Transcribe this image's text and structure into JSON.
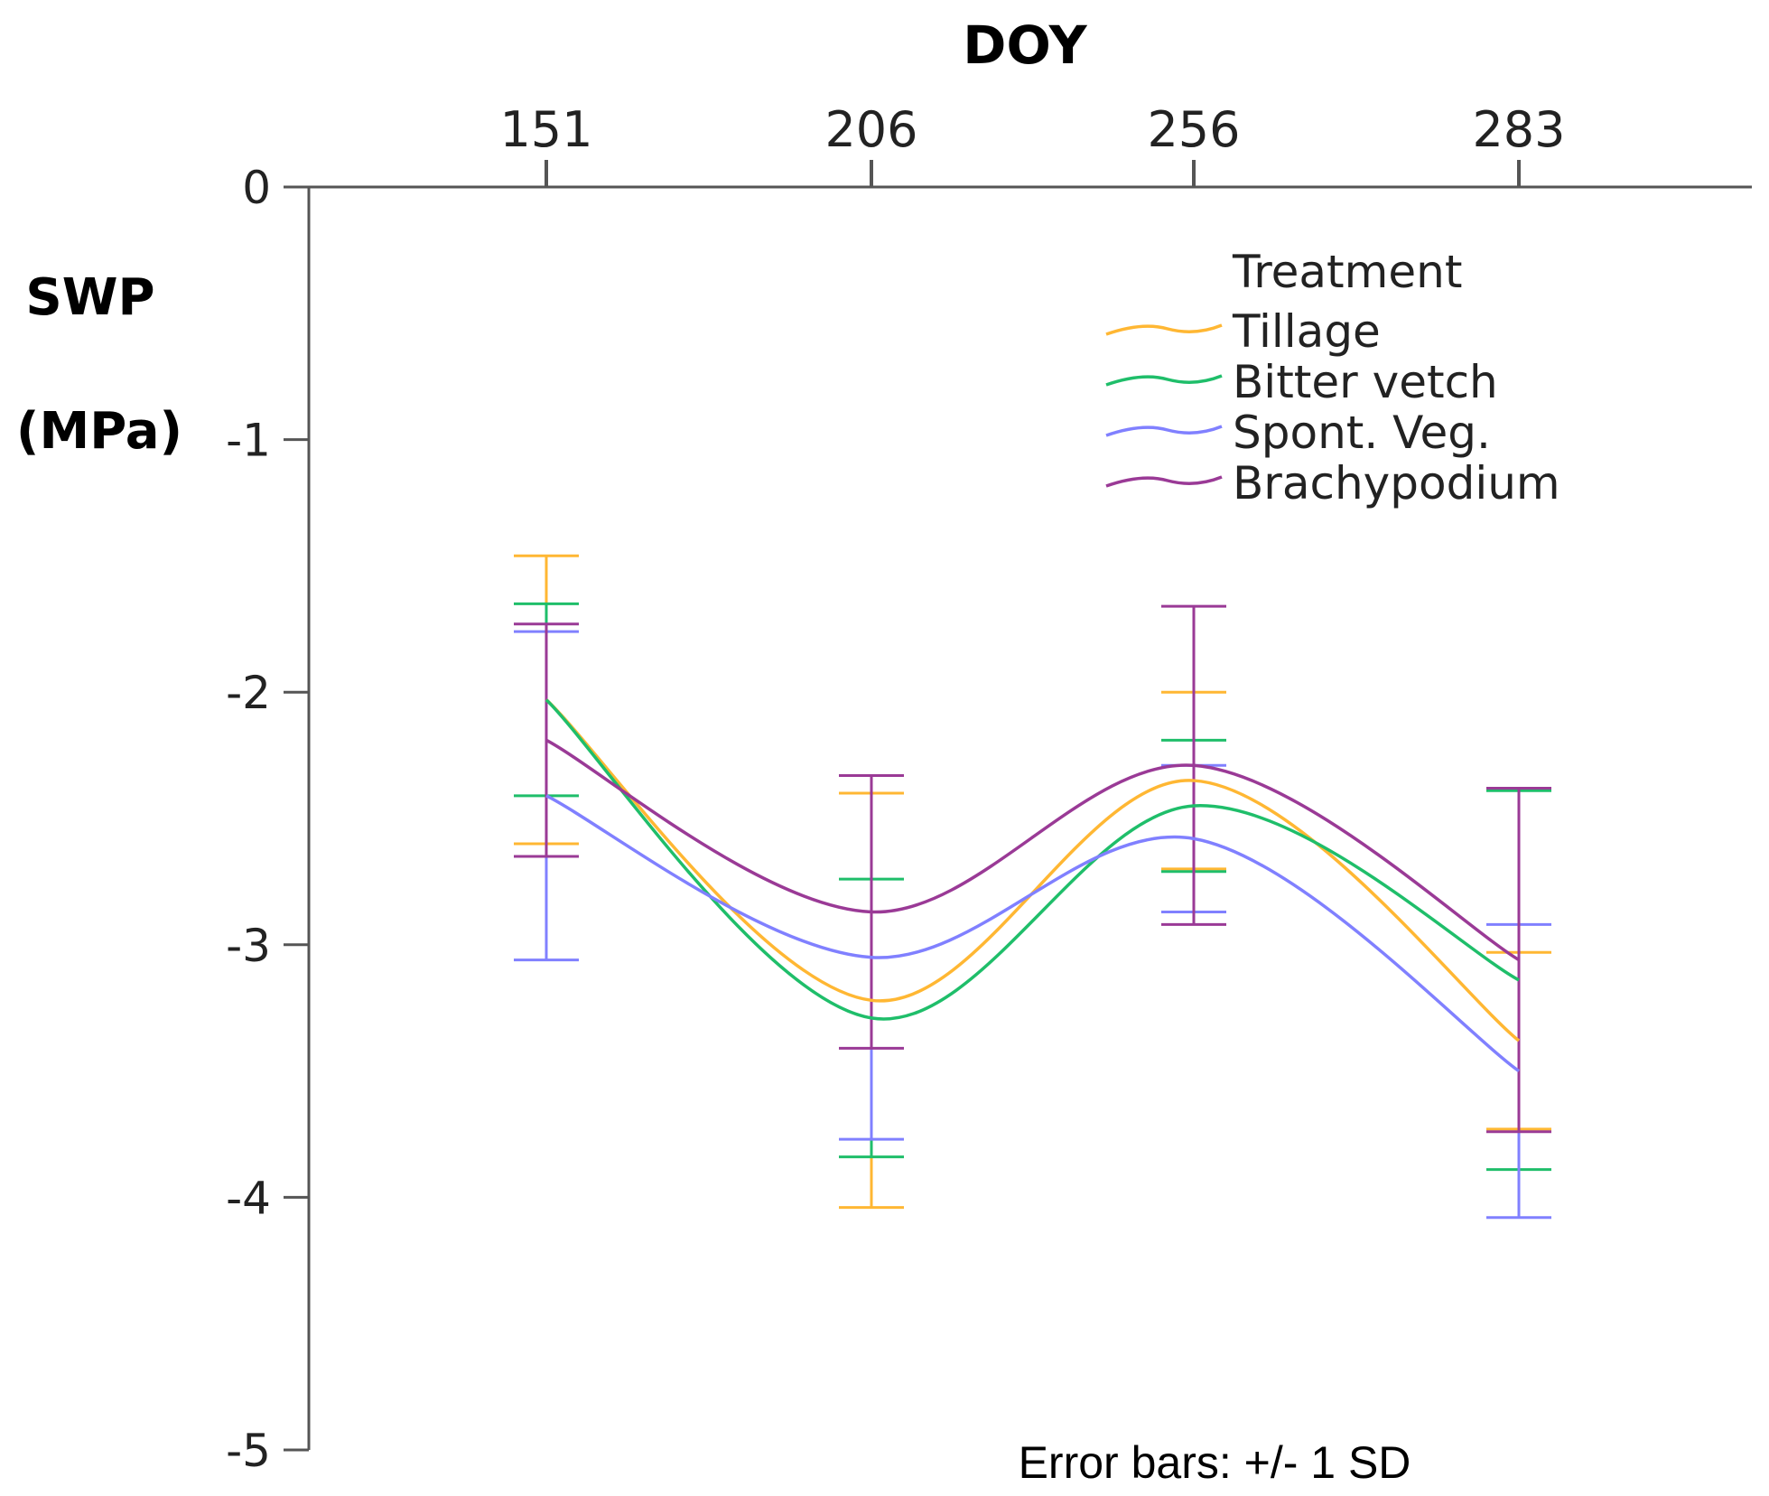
{
  "chart_data": {
    "type": "line",
    "x_axis_title": "DOY",
    "y_axis_title_line1": "SWP",
    "y_axis_title_line2": "(MPa)",
    "categories": [
      "151",
      "206",
      "256",
      "283"
    ],
    "y_ticks": [
      "0",
      "-1",
      "-2",
      "-3",
      "-4",
      "-5"
    ],
    "ylim": [
      -5,
      0
    ],
    "legend_title": "Treatment",
    "legend_position": "top-right",
    "note": "Error bars: +/- 1 SD",
    "series": [
      {
        "name": "Tillage",
        "color": "#ffb733",
        "means": [
          -2.03,
          -3.22,
          -2.35,
          -3.38
        ],
        "sd": [
          0.57,
          0.82,
          0.35,
          0.35
        ]
      },
      {
        "name": "Bitter vetch",
        "color": "#1fbe6a",
        "means": [
          -2.03,
          -3.29,
          -2.45,
          -3.14
        ],
        "sd": [
          0.38,
          0.55,
          0.26,
          0.75
        ]
      },
      {
        "name": "Spont. Veg.",
        "color": "#8080ff",
        "means": [
          -2.41,
          -3.05,
          -2.58,
          -3.5
        ],
        "sd": [
          0.65,
          0.72,
          0.29,
          0.58
        ]
      },
      {
        "name": "Brachypodium",
        "color": "#9a3a96",
        "means": [
          -2.19,
          -2.87,
          -2.29,
          -3.06
        ],
        "sd": [
          0.46,
          0.54,
          0.63,
          0.68
        ]
      }
    ]
  }
}
